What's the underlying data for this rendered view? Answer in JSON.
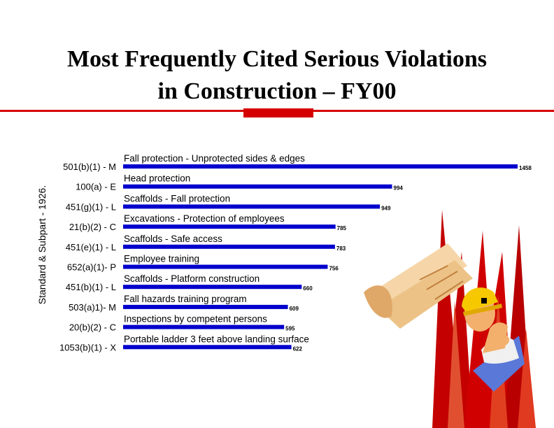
{
  "slide": {
    "title_line1": "Most Frequently Cited Serious Violations",
    "title_line2": "in Construction – FY00"
  },
  "colors": {
    "bar": "#0000cc",
    "accent": "#d40000"
  },
  "illustration": {
    "icon": "construction-worker-blueprint-clipart"
  },
  "chart_data": {
    "type": "bar",
    "orientation": "horizontal",
    "title": "",
    "ylabel": "Standard & Subpart - 1926.",
    "xlabel": "",
    "xlim": [
      0,
      1500
    ],
    "grid": false,
    "legend": "none",
    "categories": [
      "501(b)(1) - M",
      "100(a) - E",
      "451(g)(1) - L",
      "21(b)(2) - C",
      "451(e)(1) - L",
      "652(a)(1)- P",
      "451(b)(1) - L",
      "503(a)1)- M",
      "20(b)(2) - C",
      "1053(b)(1) - X"
    ],
    "descriptions": [
      "Fall protection - Unprotected sides & edges",
      "Head protection",
      "Scaffolds - Fall protection",
      "Excavations - Protection of employees",
      "Scaffolds - Safe access",
      "Employee  training",
      "Scaffolds - Platform construction",
      "Fall hazards training program",
      "Inspections by competent persons",
      "Portable ladder 3 feet above landing surface"
    ],
    "values": [
      1458,
      994,
      949,
      785,
      783,
      756,
      660,
      609,
      595,
      622
    ],
    "value_labels": [
      "1458",
      "994",
      "949",
      "785",
      "783",
      "756",
      "660",
      "609",
      "595",
      "622"
    ]
  }
}
